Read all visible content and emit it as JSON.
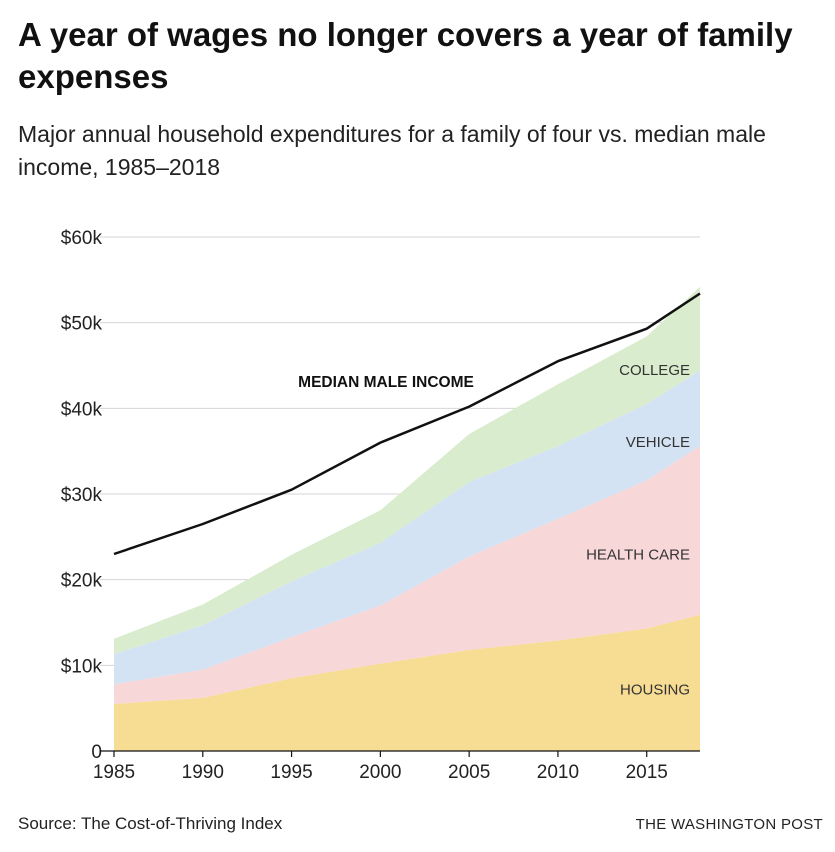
{
  "title": "A year of wages no longer covers a year of family expenses",
  "subtitle": "Major annual household expenditures for a family of four vs. median male income, 1985–2018",
  "source": "Source: The Cost-of-Thriving Index",
  "credit": "THE WASHINGTON POST",
  "chart_data": {
    "type": "area",
    "stacked": true,
    "x": [
      1985,
      1990,
      1995,
      2000,
      2005,
      2010,
      2015,
      2018
    ],
    "xlim": [
      1985,
      2018
    ],
    "ylim": [
      0,
      60000
    ],
    "x_ticks": [
      1985,
      1990,
      1995,
      2000,
      2005,
      2010,
      2015
    ],
    "x_tick_labels": [
      "1985",
      "1990",
      "1995",
      "2000",
      "2005",
      "2010",
      "2015"
    ],
    "y_ticks": [
      0,
      10000,
      20000,
      30000,
      40000,
      50000,
      60000
    ],
    "y_tick_labels": [
      "0",
      "$10k",
      "$20k",
      "$30k",
      "$40k",
      "$50k",
      "$60k"
    ],
    "series": [
      {
        "name": "HOUSING",
        "color": "#f7dc94",
        "values": [
          5500,
          6200,
          8500,
          10200,
          11800,
          12900,
          14300,
          15900
        ]
      },
      {
        "name": "HEALTH CARE",
        "color": "#f8d7d9",
        "values": [
          2300,
          3300,
          4800,
          6800,
          10900,
          14200,
          17300,
          19700
        ]
      },
      {
        "name": "VEHICLE",
        "color": "#d4e3f3",
        "values": [
          3500,
          5200,
          6500,
          7300,
          8700,
          8500,
          8900,
          8800
        ]
      },
      {
        "name": "COLLEGE",
        "color": "#d9eccd",
        "values": [
          1800,
          2400,
          3100,
          3800,
          5600,
          7200,
          7900,
          9800
        ]
      }
    ],
    "line": {
      "name": "MEDIAN MALE INCOME",
      "color": "#111111",
      "values": [
        23000,
        26500,
        30500,
        36000,
        40200,
        45500,
        49300,
        53400
      ]
    }
  }
}
